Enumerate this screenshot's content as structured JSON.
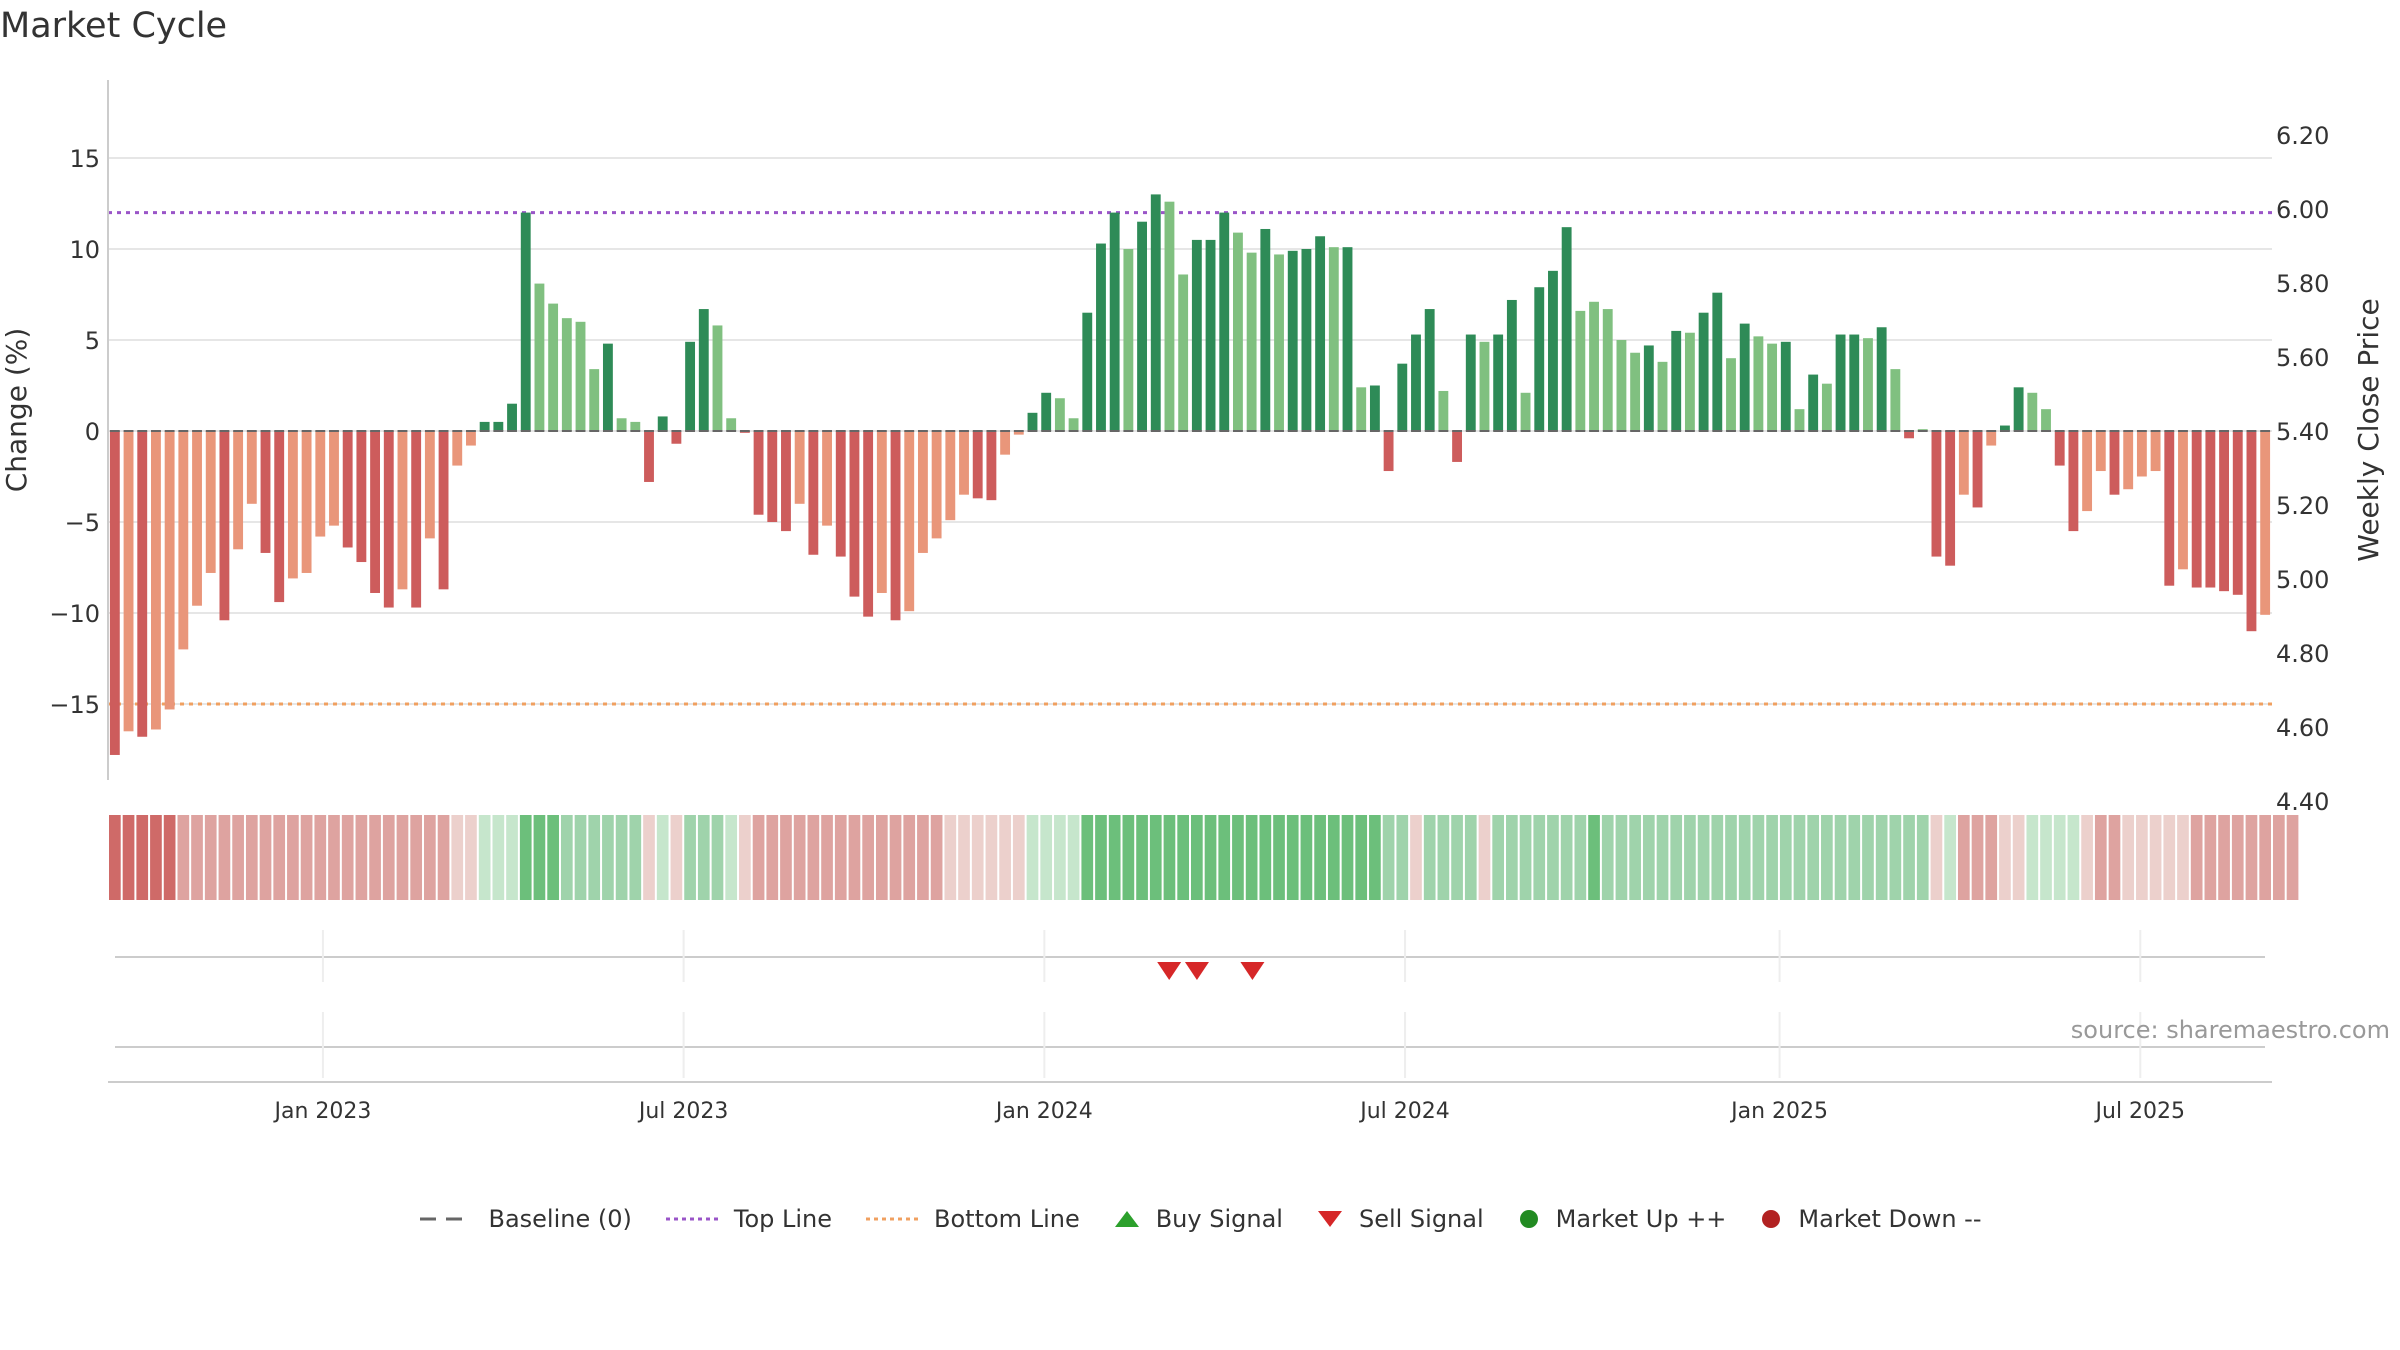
{
  "title": "Market Cycle",
  "source": "source: sharemaestro.com",
  "colors": {
    "strong_up": "#2e8b57",
    "up": "#80c080",
    "strong_down": "#cd5c5c",
    "down": "#e9967a",
    "top_line": "#9a55c8",
    "bottom_line": "#f0a060",
    "sell": "#d62728",
    "buy": "#2ca02c",
    "market_up": "#228b22",
    "market_down": "#b22222"
  },
  "chart_data": {
    "type": "bar",
    "title": "Market Cycle",
    "ylabel": "Change (%)",
    "y2label": "Weekly Close Price",
    "ylim": [
      -19,
      15
    ],
    "y_ticks": [
      15,
      10,
      5,
      0,
      -5,
      -10,
      -15
    ],
    "y_tick_labels": [
      "15",
      "10",
      "5",
      "0",
      "−5",
      "−10",
      "−15"
    ],
    "y2lim": [
      4.4,
      6.2
    ],
    "y2_ticks": [
      6.2,
      6.0,
      5.8,
      5.6,
      5.4,
      5.2,
      5.0,
      4.8,
      4.6,
      4.4
    ],
    "y2_tick_labels": [
      "6.20",
      "6.00",
      "5.80",
      "5.60",
      "5.40",
      "5.20",
      "5.00",
      "4.80",
      "4.60",
      "4.40"
    ],
    "x_tick_labels": [
      "Jan 2023",
      "Jul 2023",
      "Jan 2024",
      "Jul 2024",
      "Jan 2025",
      "Jul 2025"
    ],
    "x_tick_dates": [
      "2023-01-02",
      "2023-07-03",
      "2024-01-01",
      "2024-07-01",
      "2025-01-06",
      "2025-07-07"
    ],
    "week_start": "2022-09-19",
    "week_end": "2025-09-08",
    "top_line": 12,
    "bottom_line": -15,
    "values": [
      -17.8,
      -16.5,
      -16.8,
      -16.4,
      -15.3,
      -12.0,
      -9.6,
      -7.8,
      -10.4,
      -6.5,
      -4.0,
      -6.7,
      -9.4,
      -8.1,
      -7.8,
      -5.8,
      -5.2,
      -6.4,
      -7.2,
      -8.9,
      -9.7,
      -8.7,
      -9.7,
      -5.9,
      -8.7,
      -1.9,
      -0.8,
      0.5,
      0.5,
      1.5,
      12.0,
      8.1,
      7.0,
      6.2,
      6.0,
      3.4,
      4.8,
      0.7,
      0.5,
      -2.8,
      0.8,
      -0.7,
      4.9,
      6.7,
      5.8,
      0.7,
      -0.1,
      -4.6,
      -5.0,
      -5.5,
      -4.0,
      -6.8,
      -5.2,
      -6.9,
      -9.1,
      -10.2,
      -8.9,
      -10.4,
      -9.9,
      -6.7,
      -5.9,
      -4.9,
      -3.5,
      -3.7,
      -3.8,
      -1.3,
      -0.2,
      1.0,
      2.1,
      1.8,
      0.7,
      6.5,
      10.3,
      12.0,
      10.0,
      11.5,
      13.0,
      12.6,
      8.6,
      10.5,
      10.5,
      12.0,
      10.9,
      9.8,
      11.1,
      9.7,
      9.9,
      10.0,
      10.7,
      10.1,
      10.1,
      2.4,
      2.5,
      -2.2,
      3.7,
      5.3,
      6.7,
      2.2,
      -1.7,
      5.3,
      4.9,
      5.3,
      7.2,
      2.1,
      7.9,
      8.8,
      11.2,
      6.6,
      7.1,
      6.7,
      5.0,
      4.3,
      4.7,
      3.8,
      5.5,
      5.4,
      6.5,
      7.6,
      4.0,
      5.9,
      5.2,
      4.8,
      4.9,
      1.2,
      3.1,
      2.6,
      5.3,
      5.3,
      5.1,
      5.7,
      3.4,
      -0.4,
      0.1,
      -6.9,
      -7.4,
      -3.5,
      -4.2,
      -0.8,
      0.3,
      2.4,
      2.1,
      1.2,
      -1.9,
      -5.5,
      -4.4,
      -2.2,
      -3.5,
      -3.2,
      -2.5,
      -2.2,
      -8.5,
      -7.6,
      -8.6,
      -8.6,
      -8.8,
      -9.0,
      -11.0,
      -10.1
    ],
    "bar_colors": [
      "#cd5c5c",
      "#e9967a",
      "#cd5c5c",
      "#e9967a",
      "#e9967a",
      "#e9967a",
      "#e9967a",
      "#e9967a",
      "#cd5c5c",
      "#e9967a",
      "#e9967a",
      "#cd5c5c",
      "#cd5c5c",
      "#e9967a",
      "#e9967a",
      "#e9967a",
      "#e9967a",
      "#cd5c5c",
      "#cd5c5c",
      "#cd5c5c",
      "#cd5c5c",
      "#e9967a",
      "#cd5c5c",
      "#e9967a",
      "#cd5c5c",
      "#e9967a",
      "#e9967a",
      "#2e8b57",
      "#2e8b57",
      "#2e8b57",
      "#2e8b57",
      "#80c080",
      "#80c080",
      "#80c080",
      "#80c080",
      "#80c080",
      "#2e8b57",
      "#80c080",
      "#80c080",
      "#cd5c5c",
      "#2e8b57",
      "#cd5c5c",
      "#2e8b57",
      "#2e8b57",
      "#80c080",
      "#80c080",
      "#cd5c5c",
      "#cd5c5c",
      "#cd5c5c",
      "#cd5c5c",
      "#e9967a",
      "#cd5c5c",
      "#e9967a",
      "#cd5c5c",
      "#cd5c5c",
      "#cd5c5c",
      "#e9967a",
      "#cd5c5c",
      "#e9967a",
      "#e9967a",
      "#e9967a",
      "#e9967a",
      "#e9967a",
      "#cd5c5c",
      "#cd5c5c",
      "#e9967a",
      "#e9967a",
      "#2e8b57",
      "#2e8b57",
      "#80c080",
      "#80c080",
      "#2e8b57",
      "#2e8b57",
      "#2e8b57",
      "#80c080",
      "#2e8b57",
      "#2e8b57",
      "#80c080",
      "#80c080",
      "#2e8b57",
      "#2e8b57",
      "#2e8b57",
      "#80c080",
      "#80c080",
      "#2e8b57",
      "#80c080",
      "#2e8b57",
      "#2e8b57",
      "#2e8b57",
      "#80c080",
      "#2e8b57",
      "#80c080",
      "#2e8b57",
      "#cd5c5c",
      "#2e8b57",
      "#2e8b57",
      "#2e8b57",
      "#80c080",
      "#cd5c5c",
      "#2e8b57",
      "#80c080",
      "#2e8b57",
      "#2e8b57",
      "#80c080",
      "#2e8b57",
      "#2e8b57",
      "#2e8b57",
      "#80c080",
      "#80c080",
      "#80c080",
      "#80c080",
      "#80c080",
      "#2e8b57",
      "#80c080",
      "#2e8b57",
      "#80c080",
      "#2e8b57",
      "#2e8b57",
      "#80c080",
      "#2e8b57",
      "#80c080",
      "#80c080",
      "#2e8b57",
      "#80c080",
      "#2e8b57",
      "#80c080",
      "#2e8b57",
      "#2e8b57",
      "#80c080",
      "#2e8b57",
      "#80c080",
      "#cd5c5c",
      "#80c080",
      "#cd5c5c",
      "#cd5c5c",
      "#e9967a",
      "#cd5c5c",
      "#e9967a",
      "#2e8b57",
      "#2e8b57",
      "#80c080",
      "#80c080",
      "#cd5c5c",
      "#cd5c5c",
      "#e9967a",
      "#e9967a",
      "#cd5c5c",
      "#e9967a",
      "#e9967a",
      "#e9967a",
      "#cd5c5c",
      "#e9967a",
      "#cd5c5c",
      "#cd5c5c",
      "#cd5c5c",
      "#cd5c5c",
      "#cd5c5c",
      "#e9967a"
    ],
    "heat_strip": [
      -3,
      -3,
      -3,
      -3,
      -3,
      -2,
      -2,
      -2,
      -2,
      -2,
      -2,
      -2,
      -2,
      -2,
      -2,
      -2,
      -2,
      -2,
      -2,
      -2,
      -2,
      -2,
      -2,
      -2,
      -2,
      -1,
      -1,
      1,
      1,
      1,
      3,
      3,
      3,
      2,
      2,
      2,
      2,
      2,
      2,
      -1,
      1,
      -1,
      2,
      2,
      2,
      1,
      -1,
      -2,
      -2,
      -2,
      -2,
      -2,
      -2,
      -2,
      -2,
      -2,
      -2,
      -2,
      -2,
      -2,
      -2,
      -1,
      -1,
      -1,
      -1,
      -1,
      -1,
      1,
      1,
      1,
      1,
      3,
      3,
      3,
      3,
      3,
      3,
      3,
      3,
      3,
      3,
      3,
      3,
      3,
      3,
      3,
      3,
      3,
      3,
      3,
      3,
      3,
      3,
      2,
      2,
      -1,
      2,
      2,
      2,
      2,
      -1,
      2,
      2,
      2,
      2,
      2,
      2,
      2,
      3,
      2,
      2,
      2,
      2,
      2,
      2,
      2,
      2,
      2,
      2,
      2,
      2,
      2,
      2,
      2,
      2,
      2,
      2,
      2,
      2,
      2,
      2,
      2,
      2,
      -1,
      1,
      -2,
      -2,
      -2,
      -1,
      -1,
      1,
      1,
      1,
      1,
      -1,
      -2,
      -2,
      -1,
      -1,
      -1,
      -1,
      -1,
      -2,
      -2,
      -2,
      -2,
      -2,
      -2,
      -2,
      -2
    ],
    "sell_signals": [
      "2024-03-04",
      "2024-03-18",
      "2024-04-15"
    ],
    "buy_signals": [],
    "legend": [
      {
        "label": "Baseline (0)",
        "symbol": "dash"
      },
      {
        "label": "Top Line",
        "symbol": "dot-purple"
      },
      {
        "label": "Bottom Line",
        "symbol": "dot-orange"
      },
      {
        "label": "Buy Signal",
        "symbol": "triangle-up"
      },
      {
        "label": "Sell Signal",
        "symbol": "triangle-down"
      },
      {
        "label": "Market Up ++",
        "symbol": "circle-green"
      },
      {
        "label": "Market Down --",
        "symbol": "circle-red"
      }
    ]
  }
}
